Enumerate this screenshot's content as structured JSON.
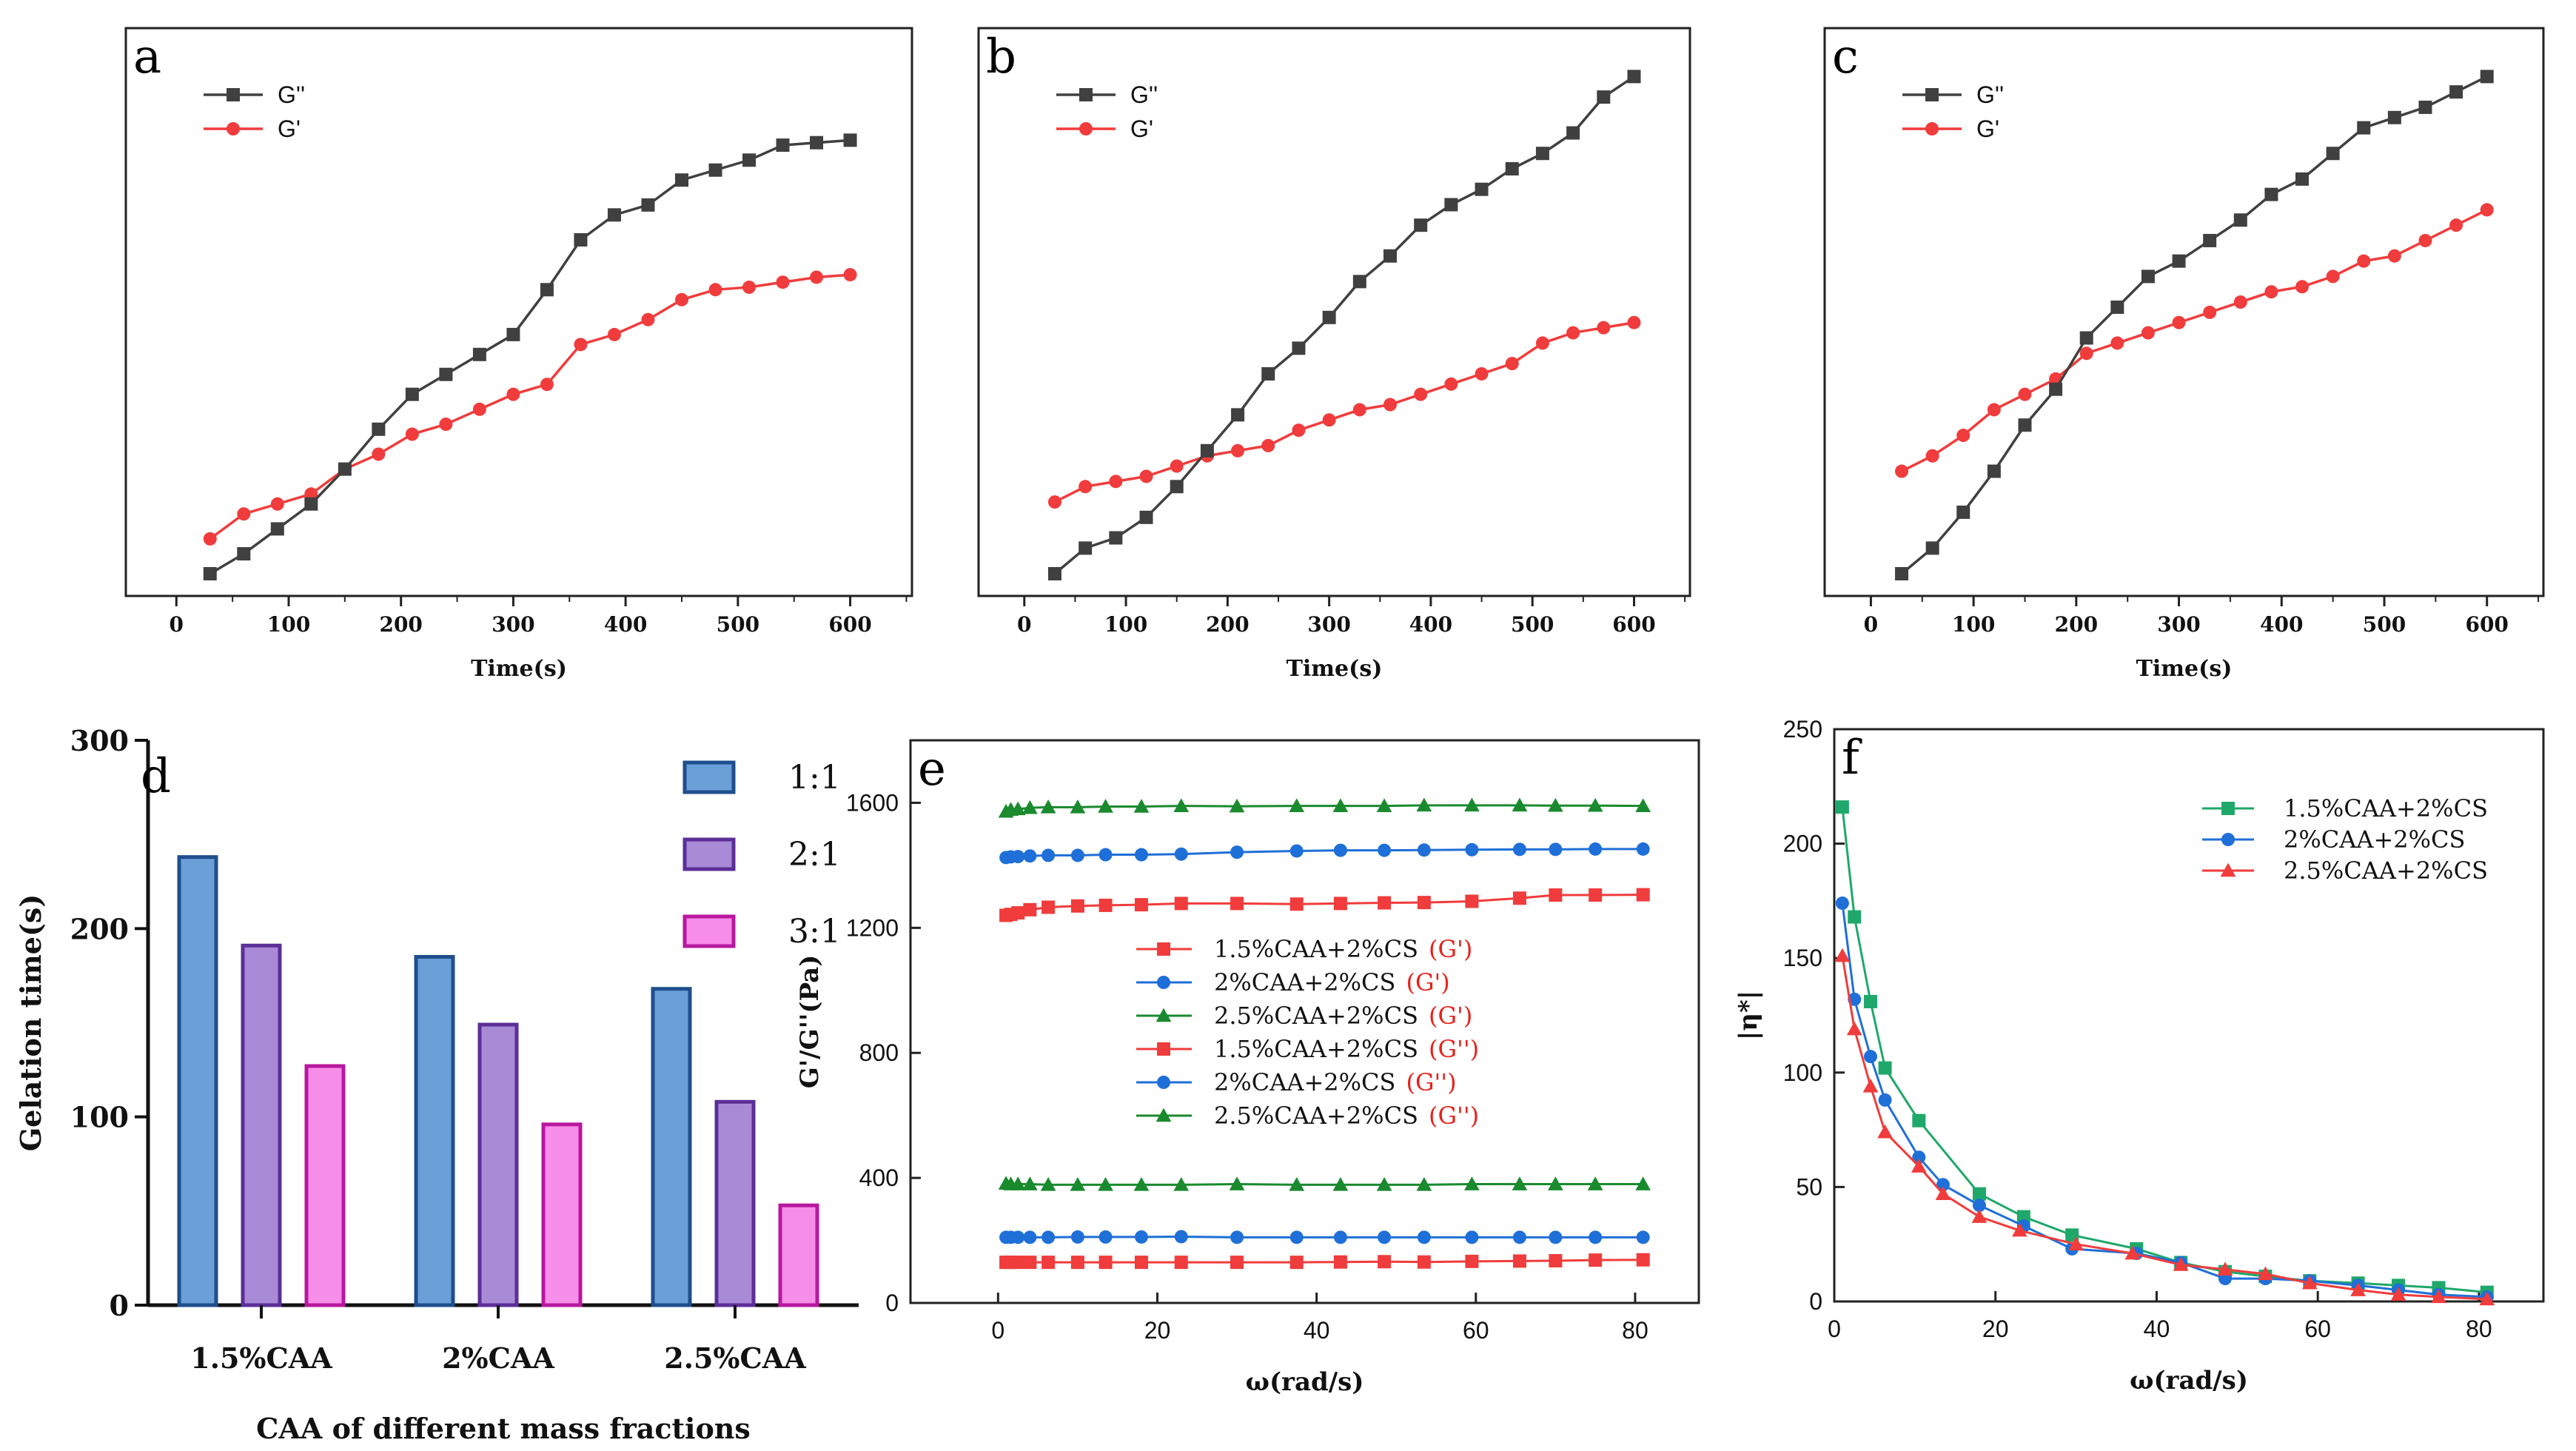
{
  "figure": {
    "panels": [
      "a",
      "b",
      "c",
      "d",
      "e",
      "f"
    ]
  },
  "chart_data": [
    {
      "id": "a",
      "type": "line",
      "label": "a",
      "title": "",
      "xlabel": "Time(s)",
      "ylabel": "",
      "xlim": [
        -45,
        655
      ],
      "ylim": [
        0,
        1.08
      ],
      "xticks": [
        0,
        100,
        200,
        300,
        400,
        500,
        600
      ],
      "yticks": [],
      "legend_position": "top-left",
      "series": [
        {
          "name": "G''",
          "color": "#404040",
          "marker": "square",
          "x": [
            30,
            60,
            90,
            120,
            150,
            180,
            210,
            240,
            270,
            300,
            330,
            360,
            390,
            420,
            450,
            480,
            510,
            540,
            570,
            600
          ],
          "y": [
            0.0,
            0.04,
            0.09,
            0.14,
            0.21,
            0.29,
            0.36,
            0.4,
            0.44,
            0.48,
            0.57,
            0.67,
            0.72,
            0.74,
            0.79,
            0.81,
            0.83,
            0.86,
            0.865,
            0.87
          ]
        },
        {
          "name": "G'",
          "color": "#f03c3c",
          "marker": "circle",
          "x": [
            30,
            60,
            90,
            120,
            150,
            180,
            210,
            240,
            270,
            300,
            330,
            360,
            390,
            420,
            450,
            480,
            510,
            540,
            570,
            600
          ],
          "y": [
            0.07,
            0.12,
            0.14,
            0.16,
            0.21,
            0.24,
            0.28,
            0.3,
            0.33,
            0.36,
            0.38,
            0.46,
            0.48,
            0.51,
            0.55,
            0.57,
            0.575,
            0.585,
            0.595,
            0.6
          ]
        }
      ]
    },
    {
      "id": "b",
      "type": "line",
      "label": "b",
      "title": "",
      "xlabel": "Time(s)",
      "ylabel": "",
      "xlim": [
        -45,
        655
      ],
      "ylim": [
        0,
        1.05
      ],
      "xticks": [
        0,
        100,
        200,
        300,
        400,
        500,
        600
      ],
      "yticks": [],
      "legend_position": "top-left",
      "series": [
        {
          "name": "G''",
          "color": "#404040",
          "marker": "square",
          "x": [
            30,
            60,
            90,
            120,
            150,
            180,
            210,
            240,
            270,
            300,
            330,
            360,
            390,
            420,
            450,
            480,
            510,
            540,
            570,
            600
          ],
          "y": [
            0.0,
            0.05,
            0.07,
            0.11,
            0.17,
            0.24,
            0.31,
            0.39,
            0.44,
            0.5,
            0.57,
            0.62,
            0.68,
            0.72,
            0.75,
            0.79,
            0.82,
            0.86,
            0.93,
            0.97
          ]
        },
        {
          "name": "G'",
          "color": "#f03c3c",
          "marker": "circle",
          "x": [
            30,
            60,
            90,
            120,
            150,
            180,
            210,
            240,
            270,
            300,
            330,
            360,
            390,
            420,
            450,
            480,
            510,
            540,
            570,
            600
          ],
          "y": [
            0.14,
            0.17,
            0.18,
            0.19,
            0.21,
            0.23,
            0.24,
            0.25,
            0.28,
            0.3,
            0.32,
            0.33,
            0.35,
            0.37,
            0.39,
            0.41,
            0.45,
            0.47,
            0.48,
            0.49
          ]
        }
      ]
    },
    {
      "id": "c",
      "type": "line",
      "label": "c",
      "title": "",
      "xlabel": "Time(s)",
      "ylabel": "",
      "xlim": [
        -45,
        655
      ],
      "ylim": [
        0,
        1.05
      ],
      "xticks": [
        0,
        100,
        200,
        300,
        400,
        500,
        600
      ],
      "yticks": [],
      "legend_position": "top-left",
      "series": [
        {
          "name": "G''",
          "color": "#404040",
          "marker": "square",
          "x": [
            30,
            60,
            90,
            120,
            150,
            180,
            210,
            240,
            270,
            300,
            330,
            360,
            390,
            420,
            450,
            480,
            510,
            540,
            570,
            600
          ],
          "y": [
            0.0,
            0.05,
            0.12,
            0.2,
            0.29,
            0.36,
            0.46,
            0.52,
            0.58,
            0.61,
            0.65,
            0.69,
            0.74,
            0.77,
            0.82,
            0.87,
            0.89,
            0.91,
            0.94,
            0.97
          ]
        },
        {
          "name": "G'",
          "color": "#f03c3c",
          "marker": "circle",
          "x": [
            30,
            60,
            90,
            120,
            150,
            180,
            210,
            240,
            270,
            300,
            330,
            360,
            390,
            420,
            450,
            480,
            510,
            540,
            570,
            600
          ],
          "y": [
            0.2,
            0.23,
            0.27,
            0.32,
            0.35,
            0.38,
            0.43,
            0.45,
            0.47,
            0.49,
            0.51,
            0.53,
            0.55,
            0.56,
            0.58,
            0.61,
            0.62,
            0.65,
            0.68,
            0.71
          ]
        }
      ]
    },
    {
      "id": "d",
      "type": "bar",
      "label": "d",
      "title": "",
      "xlabel": "CAA of different mass fractions",
      "ylabel": "Gelation time(s)",
      "ylim": [
        0,
        300
      ],
      "yticks": [
        0,
        100,
        200,
        300
      ],
      "categories": [
        "1.5%CAA",
        "2%CAA",
        "2.5%CAA"
      ],
      "legend_position": "top-right",
      "series": [
        {
          "name": "1:1",
          "fill": "#6a9fd8",
          "stroke": "#1e4e8c",
          "values": [
            238,
            185,
            168
          ]
        },
        {
          "name": "2:1",
          "fill": "#a98ad6",
          "stroke": "#5b2f97",
          "values": [
            191,
            149,
            108
          ]
        },
        {
          "name": "3:1",
          "fill": "#f68de8",
          "stroke": "#b8189f",
          "values": [
            127,
            96,
            53
          ]
        }
      ]
    },
    {
      "id": "e",
      "type": "line",
      "label": "e",
      "title": "",
      "xlabel": "ω(rad/s)",
      "ylabel": "G'/G''(Pa)",
      "xlim": [
        -11,
        88
      ],
      "ylim": [
        0,
        1800
      ],
      "xticks": [
        0,
        20,
        40,
        60,
        80
      ],
      "yticks": [
        0,
        400,
        800,
        1200,
        1600
      ],
      "legend_position": "center",
      "series": [
        {
          "name": "1.5%CAA+2%CS",
          "suffix": "(G')",
          "color": "#f03c3c",
          "marker": "square",
          "x": [
            1,
            1.6,
            2.5,
            4,
            6.3,
            10,
            13.5,
            18,
            23,
            30,
            37.5,
            43,
            48.5,
            53.5,
            59.5,
            65.5,
            70,
            75,
            81
          ],
          "y": [
            1240,
            1243,
            1248,
            1258,
            1266,
            1270,
            1272,
            1274,
            1278,
            1278,
            1276,
            1278,
            1280,
            1281,
            1285,
            1295,
            1305,
            1305,
            1306
          ]
        },
        {
          "name": "2%CAA+2%CS",
          "suffix": "(G')",
          "color": "#1f6fd8",
          "marker": "circle",
          "x": [
            1,
            1.6,
            2.5,
            4,
            6.3,
            10,
            13.5,
            18,
            23,
            30,
            37.5,
            43,
            48.5,
            53.5,
            59.5,
            65.5,
            70,
            75,
            81
          ],
          "y": [
            1425,
            1427,
            1428,
            1430,
            1432,
            1432,
            1434,
            1434,
            1436,
            1442,
            1446,
            1448,
            1448,
            1449,
            1450,
            1451,
            1451,
            1452,
            1452
          ]
        },
        {
          "name": "2.5%CAA+2%CS",
          "suffix": "(G')",
          "color": "#1a8a2e",
          "marker": "triangle",
          "x": [
            1,
            1.6,
            2.5,
            4,
            6.3,
            10,
            13.5,
            18,
            23,
            30,
            37.5,
            43,
            48.5,
            53.5,
            59.5,
            65.5,
            70,
            75,
            81
          ],
          "y": [
            1572,
            1578,
            1580,
            1584,
            1586,
            1586,
            1588,
            1588,
            1590,
            1589,
            1590,
            1590,
            1590,
            1592,
            1592,
            1592,
            1591,
            1591,
            1590
          ]
        },
        {
          "name": "1.5%CAA+2%CS",
          "suffix": "(G'')",
          "color": "#f03c3c",
          "marker": "square",
          "x": [
            1,
            1.6,
            2.5,
            4,
            6.3,
            10,
            13.5,
            18,
            23,
            30,
            37.5,
            43,
            48.5,
            53.5,
            59.5,
            65.5,
            70,
            75,
            81
          ],
          "y": [
            130,
            130,
            130,
            130,
            130,
            130,
            130,
            130,
            130,
            130,
            130,
            131,
            132,
            131,
            133,
            134,
            135,
            137,
            138
          ]
        },
        {
          "name": "2%CAA+2%CS",
          "suffix": "(G'')",
          "color": "#1f6fd8",
          "marker": "circle",
          "x": [
            1,
            1.6,
            2.5,
            4,
            6.3,
            10,
            13.5,
            18,
            23,
            30,
            37.5,
            43,
            48.5,
            53.5,
            59.5,
            65.5,
            70,
            75,
            81
          ],
          "y": [
            210,
            210,
            210,
            210,
            210,
            211,
            211,
            211,
            212,
            210,
            210,
            210,
            210,
            210,
            210,
            210,
            210,
            210,
            210
          ]
        },
        {
          "name": "2.5%CAA+2%CS",
          "suffix": "(G'')",
          "color": "#1a8a2e",
          "marker": "triangle",
          "x": [
            1,
            1.6,
            2.5,
            4,
            6.3,
            10,
            13.5,
            18,
            23,
            30,
            37.5,
            43,
            48.5,
            53.5,
            59.5,
            65.5,
            70,
            75,
            81
          ],
          "y": [
            382,
            380,
            380,
            380,
            378,
            378,
            378,
            378,
            378,
            380,
            378,
            378,
            378,
            378,
            380,
            380,
            380,
            380,
            380
          ]
        }
      ]
    },
    {
      "id": "f",
      "type": "line",
      "label": "f",
      "title": "",
      "xlabel": "ω(rad/s)",
      "ylabel": "|η*|",
      "xlim": [
        0,
        88
      ],
      "ylim": [
        0,
        250
      ],
      "xticks": [
        0,
        20,
        40,
        60,
        80
      ],
      "yticks": [
        0,
        50,
        100,
        150,
        200,
        250
      ],
      "legend_position": "top-right",
      "series": [
        {
          "name": "1.5%CAA+2%CS",
          "color": "#1fa86a",
          "marker": "square",
          "x": [
            1,
            2.5,
            4.5,
            6.3,
            10.5,
            18,
            23.5,
            29.5,
            37.5,
            43,
            48.5,
            53.5,
            59,
            65,
            70,
            75,
            81
          ],
          "y": [
            216,
            168,
            131,
            102,
            79,
            47,
            37,
            29,
            23,
            17,
            13,
            11,
            9,
            8,
            7,
            6,
            4
          ]
        },
        {
          "name": "2%CAA+2%CS",
          "color": "#1f6fd8",
          "marker": "circle",
          "x": [
            1,
            2.5,
            4.5,
            6.3,
            10.5,
            13.5,
            18,
            23.5,
            29.5,
            37.5,
            43,
            48.5,
            53.5,
            59,
            65,
            70,
            75,
            81
          ],
          "y": [
            174,
            132,
            107,
            88,
            63,
            51,
            42,
            33,
            23,
            21,
            17,
            10,
            10,
            9,
            7,
            5,
            3,
            2
          ]
        },
        {
          "name": "2.5%CAA+2%CS",
          "color": "#f03c3c",
          "marker": "triangle",
          "x": [
            1,
            2.5,
            4.5,
            6.3,
            10.5,
            13.5,
            18,
            23,
            30,
            37,
            43,
            48.5,
            53.5,
            59,
            65,
            70,
            75,
            81
          ],
          "y": [
            151,
            119,
            94,
            74,
            59,
            47,
            37,
            31,
            25,
            21,
            16,
            14,
            12,
            8,
            5,
            3,
            2,
            1
          ]
        }
      ]
    }
  ]
}
